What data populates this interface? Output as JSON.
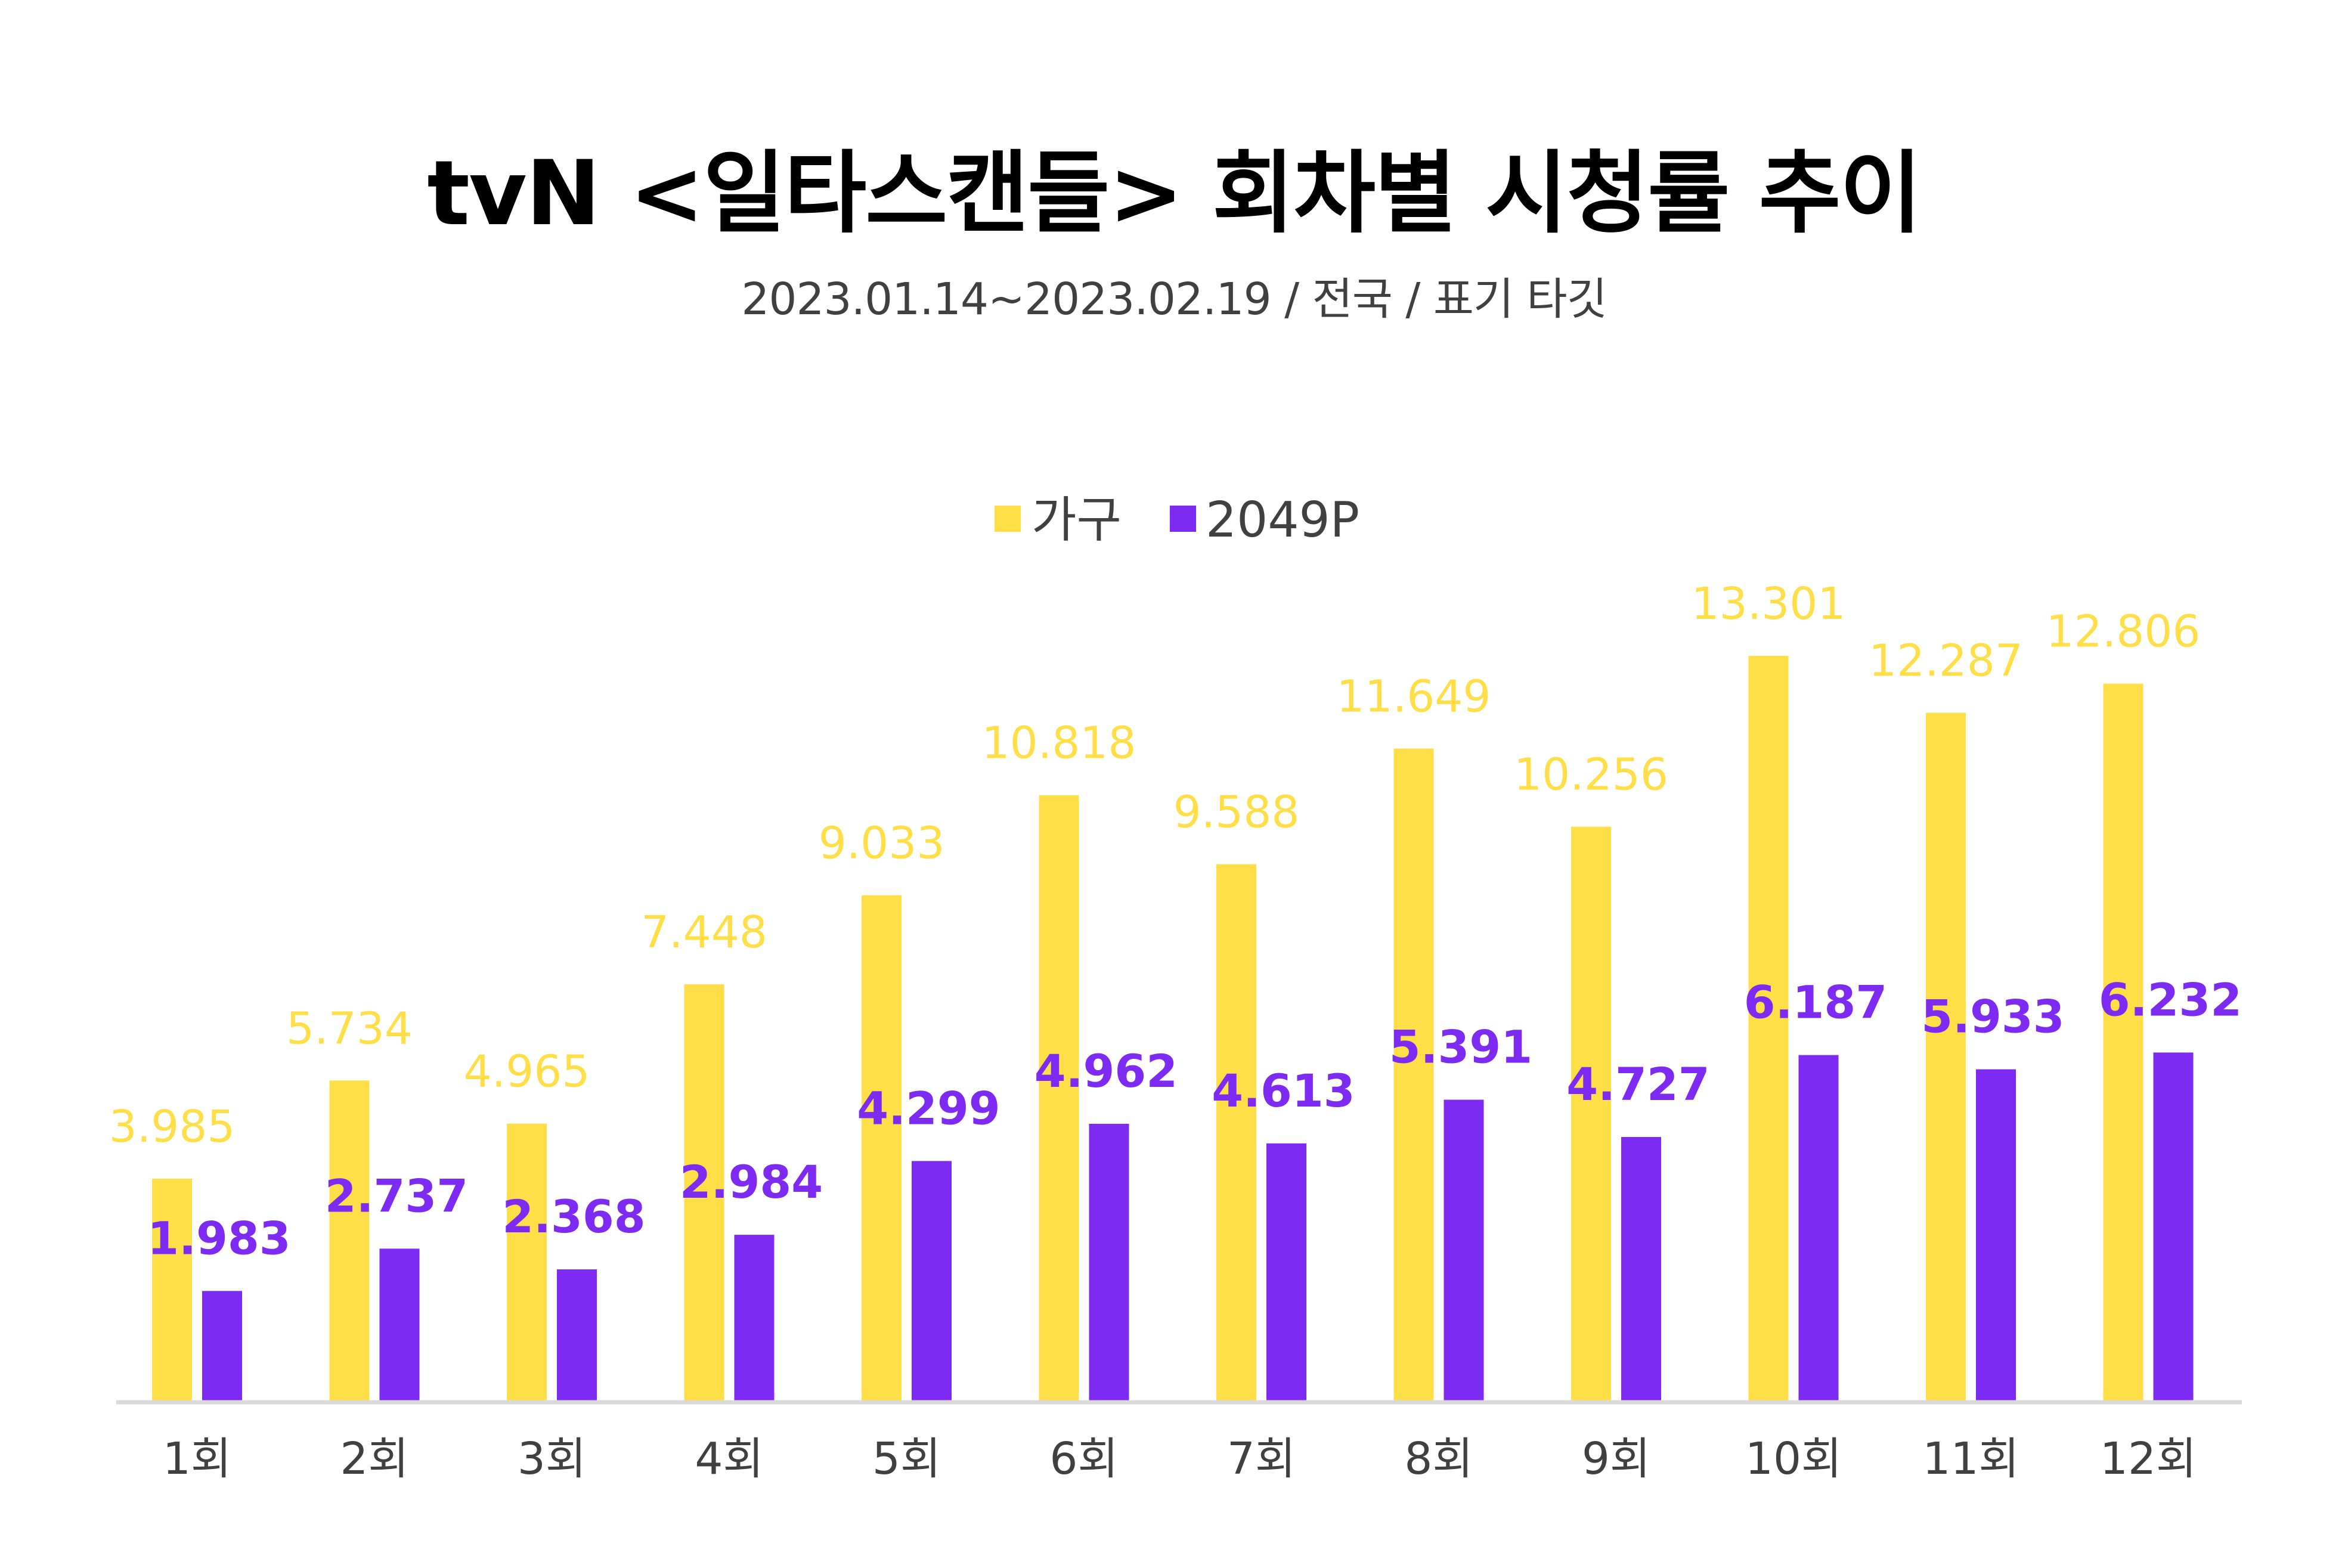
{
  "title": "tvN <일타스캔들> 회차별 시청률 추이",
  "subtitle": "2023.01.14~2023.02.19 / 전국 / 표기 타깃",
  "colors": {
    "household": "#FFDE47",
    "household_label": "#FFDE47",
    "p2049": "#7D2AF2",
    "p2049_label": "#7D2AF2",
    "axis": "#D9D9D9",
    "tick_label": "#404040",
    "legend_text": "#404040"
  },
  "chart_data": {
    "type": "bar",
    "title": "tvN <일타스캔들> 회차별 시청률 추이",
    "subtitle": "2023.01.14~2023.02.19 / 전국 / 표기 타깃",
    "categories": [
      "1회",
      "2회",
      "3회",
      "4회",
      "5회",
      "6회",
      "7회",
      "8회",
      "9회",
      "10회",
      "11회",
      "12회"
    ],
    "series": [
      {
        "name": "가구",
        "values": [
          3.985,
          5.734,
          4.965,
          7.448,
          9.033,
          10.818,
          9.588,
          11.649,
          10.256,
          13.301,
          12.287,
          12.806
        ],
        "labels": [
          "3.985",
          "5.734",
          "4.965",
          "7.448",
          "9.033",
          "10.818",
          "9.588",
          "11.649",
          "10.256",
          "13.301",
          "12.287",
          "12.806"
        ]
      },
      {
        "name": "2049P",
        "values": [
          1.983,
          2.737,
          2.368,
          2.984,
          4.299,
          4.962,
          4.613,
          5.391,
          4.727,
          6.187,
          5.933,
          6.232
        ],
        "labels": [
          "1.983",
          "2.737",
          "2.368",
          "2.984",
          "4.299",
          "4.962",
          "4.613",
          "5.391",
          "4.727",
          "6.187",
          "5.933",
          "6.232"
        ]
      }
    ],
    "ylim": [
      0,
      13.301
    ],
    "legend": "top-center",
    "grid": false,
    "xlabel": "",
    "ylabel": ""
  }
}
